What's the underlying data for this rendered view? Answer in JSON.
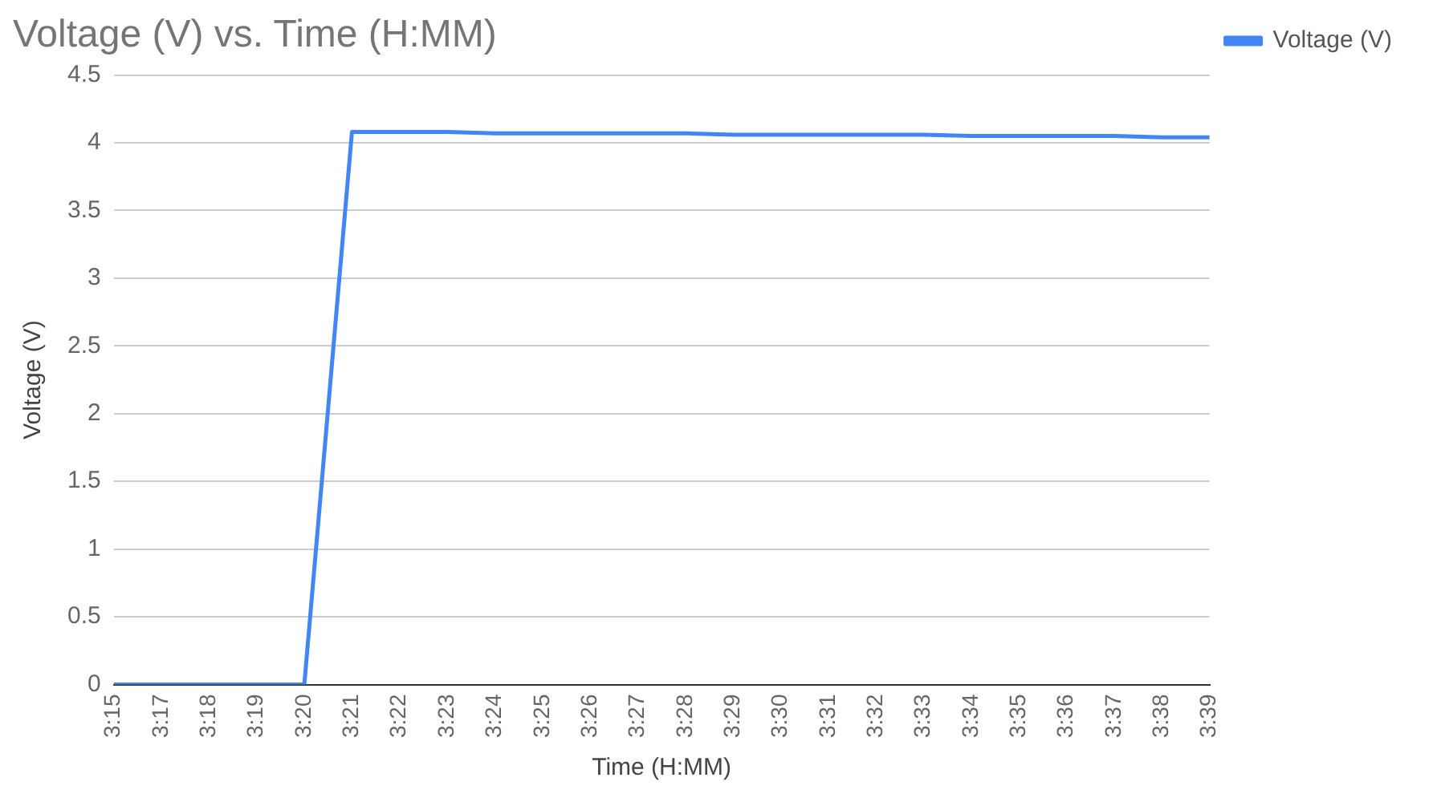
{
  "chart_data": {
    "type": "line",
    "title": "Voltage (V) vs. Time (H:MM)",
    "xlabel": "Time (H:MM)",
    "ylabel": "Voltage (V)",
    "categories": [
      "3:15",
      "3:17",
      "3:18",
      "3:19",
      "3:20",
      "3:21",
      "3:22",
      "3:23",
      "3:24",
      "3:25",
      "3:26",
      "3:27",
      "3:28",
      "3:29",
      "3:30",
      "3:31",
      "3:32",
      "3:33",
      "3:34",
      "3:35",
      "3:36",
      "3:37",
      "3:38",
      "3:39"
    ],
    "series": [
      {
        "name": "Voltage (V)",
        "color": "#4285f4",
        "values": [
          0,
          0,
          0,
          0,
          0,
          4.08,
          4.08,
          4.08,
          4.07,
          4.07,
          4.07,
          4.07,
          4.07,
          4.06,
          4.06,
          4.06,
          4.06,
          4.06,
          4.05,
          4.05,
          4.05,
          4.05,
          4.04,
          4.04
        ]
      }
    ],
    "ylim": [
      0,
      4.5
    ],
    "yticks": [
      0,
      0.5,
      1,
      1.5,
      2,
      2.5,
      3,
      3.5,
      4,
      4.5
    ],
    "grid": "y",
    "legend": "top right",
    "marker": "none",
    "line_style": "solid"
  }
}
